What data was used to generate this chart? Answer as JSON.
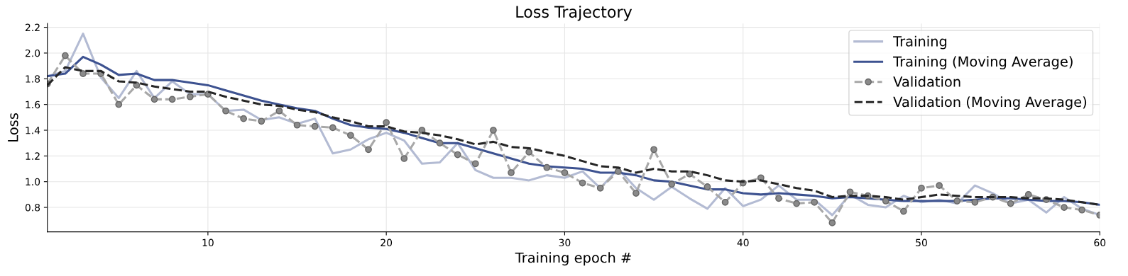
{
  "chart_data": {
    "type": "line",
    "title": "Loss Trajectory",
    "xlabel": "Training epoch #",
    "ylabel": "Loss",
    "x": [
      1,
      2,
      3,
      4,
      5,
      6,
      7,
      8,
      9,
      10,
      11,
      12,
      13,
      14,
      15,
      16,
      17,
      18,
      19,
      20,
      21,
      22,
      23,
      24,
      25,
      26,
      27,
      28,
      29,
      30,
      31,
      32,
      33,
      34,
      35,
      36,
      37,
      38,
      39,
      40,
      41,
      42,
      43,
      44,
      45,
      46,
      47,
      48,
      49,
      50,
      51,
      52,
      53,
      54,
      55,
      56,
      57,
      58,
      59,
      60
    ],
    "xlim": [
      1,
      60
    ],
    "xticks": [
      10,
      20,
      30,
      40,
      50,
      60
    ],
    "ylim": [
      0.61,
      2.23
    ],
    "yticks": [
      0.8,
      {
        "value": 1,
        "label": "1.0"
      },
      1.2,
      1.4,
      1.6,
      1.8,
      {
        "value": 2,
        "label": "2.0"
      },
      2.2
    ],
    "grid": true,
    "legend": "top right",
    "series": [
      {
        "name": "Training",
        "color": "#b3bbd3",
        "line_style": "solid",
        "marker": "none",
        "values": [
          1.82,
          1.86,
          2.15,
          1.81,
          1.65,
          1.86,
          1.65,
          1.78,
          1.68,
          1.68,
          1.55,
          1.56,
          1.48,
          1.5,
          1.45,
          1.49,
          1.22,
          1.25,
          1.33,
          1.38,
          1.32,
          1.14,
          1.15,
          1.3,
          1.09,
          1.03,
          1.03,
          1.01,
          1.05,
          1.03,
          1.08,
          0.95,
          1.1,
          0.95,
          0.86,
          0.96,
          0.87,
          0.79,
          0.95,
          0.81,
          0.86,
          0.97,
          0.86,
          0.86,
          0.74,
          0.9,
          0.82,
          0.8,
          0.89,
          0.84,
          0.86,
          0.83,
          0.97,
          0.91,
          0.83,
          0.86,
          0.76,
          0.88,
          0.79,
          0.74
        ]
      },
      {
        "name": "Training (Moving Average)",
        "color": "#3d5290",
        "line_style": "solid",
        "marker": "none",
        "values": [
          1.82,
          1.84,
          1.97,
          1.91,
          1.83,
          1.84,
          1.79,
          1.79,
          1.77,
          1.75,
          1.71,
          1.67,
          1.63,
          1.6,
          1.57,
          1.55,
          1.49,
          1.44,
          1.42,
          1.41,
          1.38,
          1.34,
          1.3,
          1.3,
          1.26,
          1.22,
          1.18,
          1.14,
          1.12,
          1.11,
          1.1,
          1.07,
          1.07,
          1.05,
          1.01,
          1.0,
          0.97,
          0.94,
          0.94,
          0.91,
          0.9,
          0.91,
          0.9,
          0.89,
          0.87,
          0.88,
          0.87,
          0.86,
          0.85,
          0.85,
          0.85,
          0.85,
          0.86,
          0.87,
          0.87,
          0.86,
          0.85,
          0.85,
          0.84,
          0.82
        ]
      },
      {
        "name": "Validation",
        "color": "#a8a8a8",
        "line_style": "dashed",
        "marker": "circle",
        "values": [
          1.76,
          1.98,
          1.84,
          1.84,
          1.6,
          1.75,
          1.64,
          1.64,
          1.66,
          1.68,
          1.55,
          1.49,
          1.47,
          1.55,
          1.44,
          1.43,
          1.42,
          1.36,
          1.25,
          1.46,
          1.18,
          1.4,
          1.3,
          1.21,
          1.14,
          1.4,
          1.07,
          1.23,
          1.11,
          1.07,
          0.99,
          0.95,
          1.08,
          0.91,
          1.25,
          0.98,
          1.06,
          0.96,
          0.84,
          0.99,
          1.03,
          0.87,
          0.83,
          0.84,
          0.68,
          0.92,
          0.89,
          0.85,
          0.77,
          0.95,
          0.97,
          0.85,
          0.84,
          0.88,
          0.83,
          0.9,
          0.86,
          0.8,
          0.78,
          0.74
        ]
      },
      {
        "name": "Validation (Moving Average)",
        "color": "#262626",
        "line_style": "dashed",
        "marker": "none",
        "values": [
          1.75,
          1.89,
          1.86,
          1.86,
          1.78,
          1.77,
          1.74,
          1.72,
          1.7,
          1.7,
          1.66,
          1.63,
          1.6,
          1.59,
          1.56,
          1.54,
          1.5,
          1.47,
          1.43,
          1.43,
          1.39,
          1.38,
          1.36,
          1.33,
          1.29,
          1.31,
          1.27,
          1.26,
          1.23,
          1.2,
          1.16,
          1.12,
          1.11,
          1.07,
          1.1,
          1.08,
          1.08,
          1.05,
          1.01,
          1.0,
          1.01,
          0.98,
          0.95,
          0.93,
          0.88,
          0.89,
          0.89,
          0.88,
          0.86,
          0.88,
          0.9,
          0.89,
          0.88,
          0.88,
          0.88,
          0.87,
          0.87,
          0.86,
          0.84,
          0.82
        ]
      }
    ]
  }
}
